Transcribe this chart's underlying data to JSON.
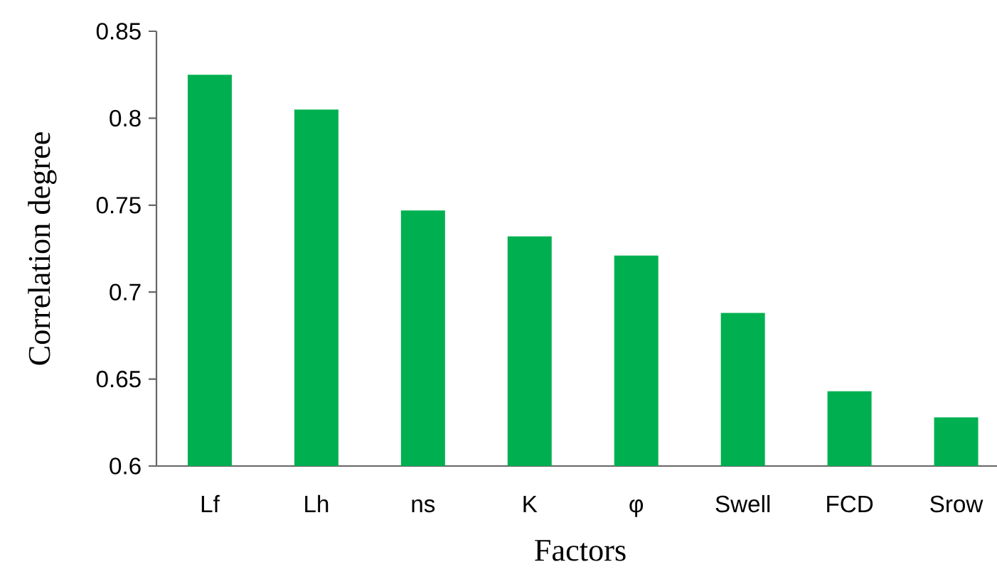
{
  "chart_data": {
    "type": "bar",
    "xlabel": "Factors",
    "ylabel": "Correlation degree",
    "categories": [
      "Lf",
      "Lh",
      "ns",
      "K",
      "φ",
      "Swell",
      "FCD",
      "Srow"
    ],
    "values": [
      0.825,
      0.805,
      0.747,
      0.732,
      0.721,
      0.688,
      0.643,
      0.628
    ],
    "color": "#00b050",
    "ylim": [
      0.6,
      0.85
    ],
    "yticks": [
      0.6,
      0.65,
      0.7,
      0.75,
      0.8,
      0.85
    ],
    "grid": false
  }
}
